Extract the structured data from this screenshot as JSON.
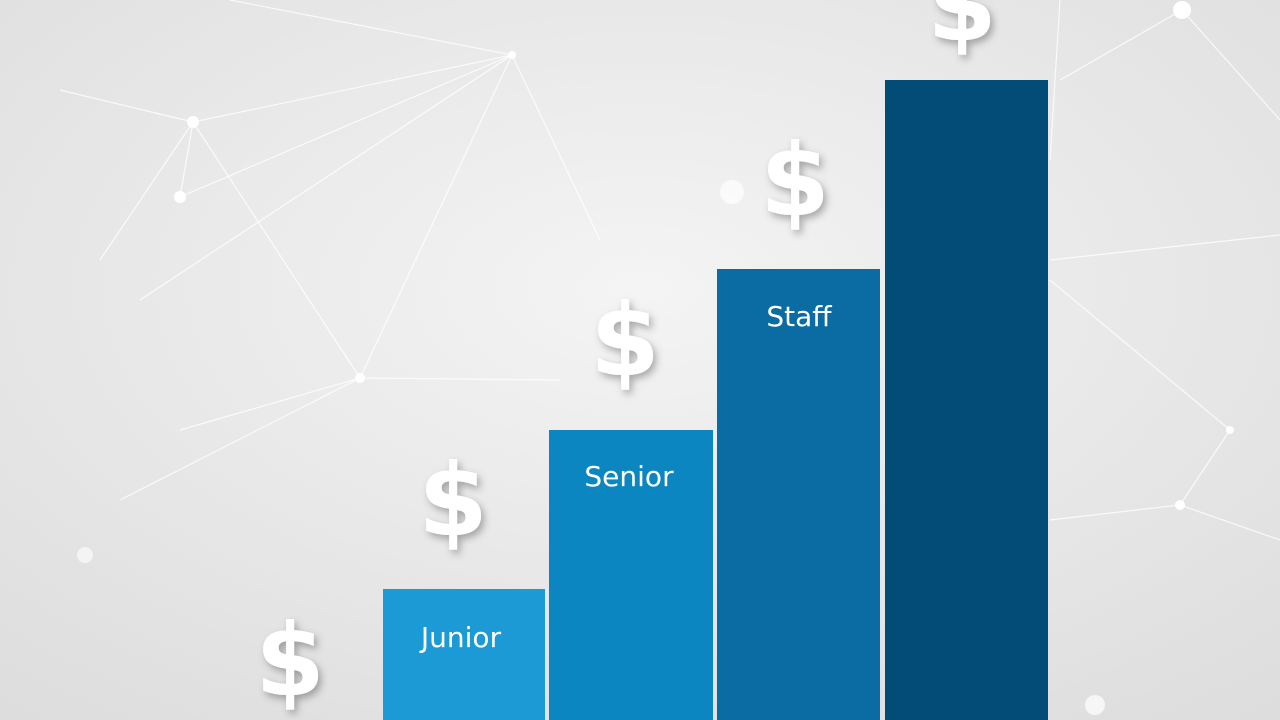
{
  "levels": [
    {
      "label": "Junior"
    },
    {
      "label": "Senior"
    },
    {
      "label": "Staff"
    }
  ],
  "symbol": "$"
}
